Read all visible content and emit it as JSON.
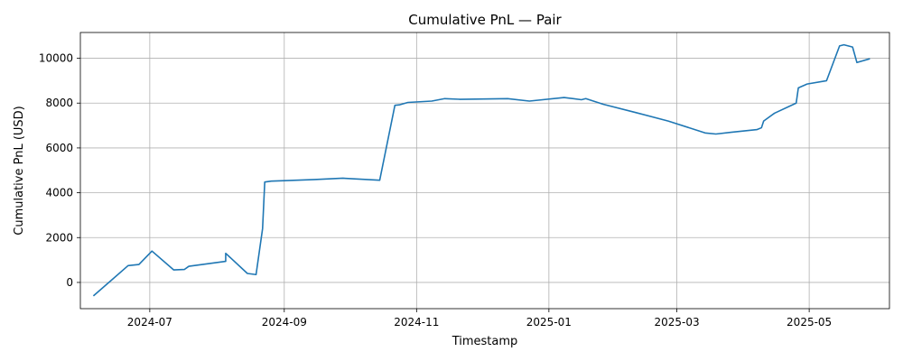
{
  "chart_data": {
    "type": "line",
    "title": "Cumulative PnL — Pair",
    "xlabel": "Timestamp",
    "ylabel": "Cumulative PnL (USD)",
    "xlim": [
      "2024-05-30",
      "2025-06-07"
    ],
    "ylim": [
      -1170,
      11150
    ],
    "grid": true,
    "line_color": "#1f77b4",
    "x_ticks": [
      {
        "value": "2024-07-01",
        "label": "2024-07"
      },
      {
        "value": "2024-09-01",
        "label": "2024-09"
      },
      {
        "value": "2024-11-01",
        "label": "2024-11"
      },
      {
        "value": "2025-01-01",
        "label": "2025-01"
      },
      {
        "value": "2025-03-01",
        "label": "2025-03"
      },
      {
        "value": "2025-05-01",
        "label": "2025-05"
      }
    ],
    "y_ticks": [
      0,
      2000,
      4000,
      6000,
      8000,
      10000
    ],
    "series": [
      {
        "x": [
          "2024-06-05",
          "2024-06-21",
          "2024-06-26",
          "2024-07-02",
          "2024-07-12",
          "2024-07-17",
          "2024-07-19",
          "2024-08-05",
          "2024-08-05",
          "2024-08-15",
          "2024-08-19",
          "2024-08-22",
          "2024-08-23",
          "2024-08-26",
          "2024-09-01",
          "2024-09-15",
          "2024-09-28",
          "2024-10-15",
          "2024-10-22",
          "2024-10-24",
          "2024-10-28",
          "2024-11-08",
          "2024-11-14",
          "2024-11-21",
          "2024-12-13",
          "2024-12-23",
          "2025-01-08",
          "2025-01-16",
          "2025-01-18",
          "2025-01-26",
          "2025-02-10",
          "2025-02-25",
          "2025-03-14",
          "2025-03-19",
          "2025-03-26",
          "2025-04-07",
          "2025-04-09",
          "2025-04-10",
          "2025-04-15",
          "2025-04-25",
          "2025-04-26",
          "2025-04-30",
          "2025-05-09",
          "2025-05-15",
          "2025-05-17",
          "2025-05-21",
          "2025-05-23",
          "2025-05-29"
        ],
        "y": [
          -600,
          750,
          800,
          1400,
          560,
          580,
          720,
          940,
          1300,
          400,
          350,
          2400,
          4480,
          4520,
          4540,
          4590,
          4650,
          4560,
          7900,
          7920,
          8030,
          8090,
          8200,
          8170,
          8200,
          8090,
          8250,
          8150,
          8200,
          7950,
          7580,
          7200,
          6670,
          6620,
          6700,
          6820,
          6900,
          7200,
          7550,
          8000,
          8680,
          8850,
          9000,
          10550,
          10600,
          10500,
          9810,
          9980
        ]
      }
    ]
  }
}
